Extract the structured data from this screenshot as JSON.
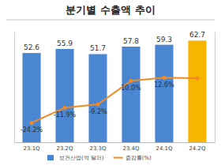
{
  "chart_data": {
    "type": "bar",
    "title": "분기별 수출액 추이",
    "categories": [
      "23.1Q",
      "23.2Q",
      "23.3Q",
      "23.4Q",
      "24.1Q",
      "24.2Q"
    ],
    "series": [
      {
        "name": "보건산업(억 달러)",
        "type": "bar",
        "data_labels": true,
        "colors": [
          "#4a86d2",
          "#4a86d2",
          "#4a86d2",
          "#4a86d2",
          "#4a86d2",
          "#f7b500"
        ],
        "values": [
          52.6,
          55.9,
          51.7,
          57.8,
          59.3,
          62.7
        ]
      },
      {
        "name": "증감률(%)",
        "type": "line",
        "axis": "y2",
        "color": "#f08a24",
        "marker": "circle",
        "data_labels": true,
        "values": [
          -24.2,
          -11.9,
          -9.2,
          10.0,
          12.6,
          12.1
        ],
        "value_labels": [
          "-24.2%",
          "-11.9%",
          "-9.2%",
          "10.0%",
          "12.6%",
          null
        ]
      }
    ],
    "ylim": [
      -20,
      70
    ],
    "y2lim": [
      -40,
      50
    ],
    "tick_labels": "x",
    "legend": "bottom"
  }
}
